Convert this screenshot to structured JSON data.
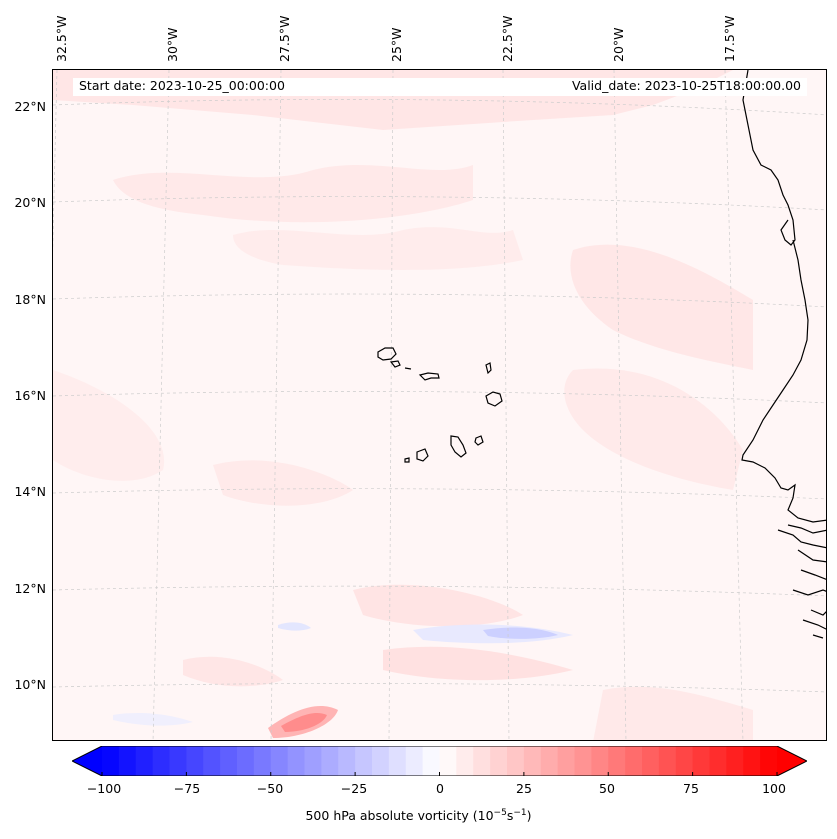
{
  "header": {
    "start_date": "Start date: 2023-10-25_00:00:00",
    "valid_date": "Valid_date: 2023-10-25T18:00:00.00"
  },
  "axes": {
    "lat_labels": [
      "22°N",
      "20°N",
      "18°N",
      "16°N",
      "14°N",
      "12°N",
      "10°N"
    ],
    "lon_labels": [
      "32.5°W",
      "30°W",
      "27.5°W",
      "25°W",
      "22.5°W",
      "20°W",
      "17.5°W"
    ]
  },
  "colorbar": {
    "ticks": [
      "−100",
      "−75",
      "−50",
      "−25",
      "0",
      "25",
      "50",
      "75",
      "100"
    ],
    "label": "500 hPa absolute vorticity (10",
    "label_exp1": "−5",
    "label_mid": "s",
    "label_exp2": "−1",
    "label_end": ")",
    "min": -100,
    "max": 100,
    "low_color": "#0000ff",
    "mid_color": "#ffffff",
    "high_color": "#ff0000"
  },
  "colors": {
    "background_field": "#fff6f6",
    "coastline": "#000000",
    "gridline": "#cccccc"
  }
}
